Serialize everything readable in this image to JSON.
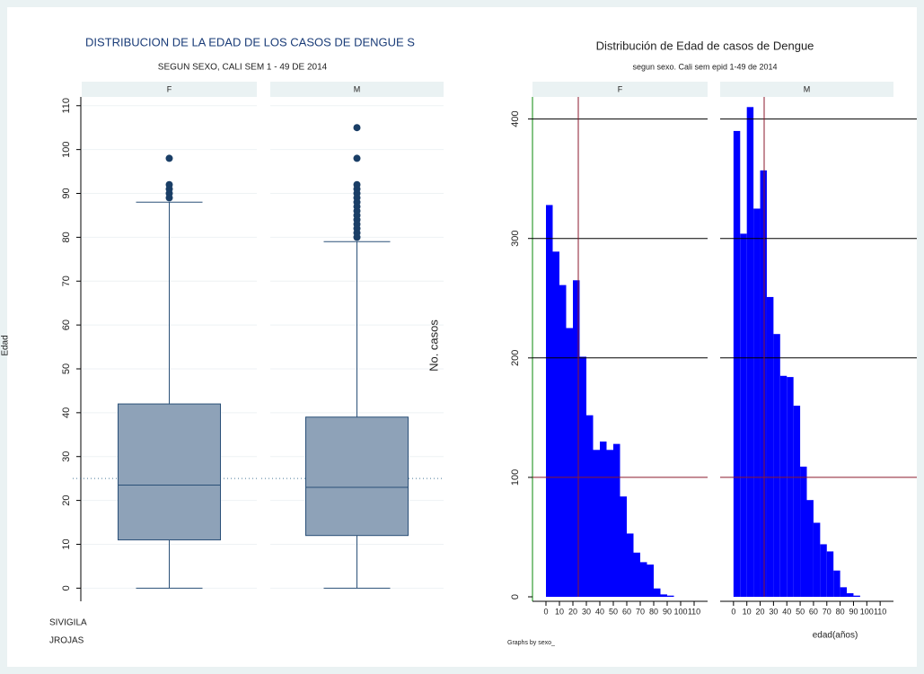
{
  "chart_data": [
    {
      "type": "box",
      "title": "DISTRIBUCION DE LA EDAD DE LOS CASOS DE DENGUE S",
      "subtitle": "SEGUN SEXO, CALI SEM 1 - 49 DE 2014",
      "y_label": "Edad",
      "ylim": [
        -3,
        112
      ],
      "yticks": [
        0,
        10,
        20,
        30,
        40,
        50,
        60,
        70,
        80,
        90,
        100,
        110
      ],
      "ref_line": 25,
      "color": "#8ea2b8",
      "line_color": "#2a5078",
      "panels": [
        {
          "name": "F",
          "q1": 11,
          "median": 23.5,
          "q3": 42,
          "whisker_low": 0,
          "whisker_high": 88,
          "outliers": [
            89,
            90,
            91,
            92,
            98
          ]
        },
        {
          "name": "M",
          "q1": 12,
          "median": 23,
          "q3": 39,
          "whisker_low": 0,
          "whisker_high": 79,
          "outliers": [
            80,
            81,
            82,
            83,
            84,
            85,
            86,
            87,
            88,
            89,
            90,
            91,
            92,
            98,
            105
          ]
        }
      ],
      "notes": [
        "SIVIGILA",
        "JROJAS"
      ]
    },
    {
      "type": "histogram",
      "title": "Distribución de Edad de casos de Dengue",
      "subtitle": "segun sexo. Cali sem epid 1-49 de 2014",
      "y_label": "No. casos",
      "x_label": "edad(años)",
      "note": "Graphs by sexo_",
      "bins": [
        0,
        5,
        10,
        15,
        20,
        25,
        30,
        35,
        40,
        45,
        50,
        55,
        60,
        65,
        70,
        75,
        80,
        85,
        90,
        95
      ],
      "xlim": [
        -10,
        120
      ],
      "xticks": [
        0,
        10,
        20,
        30,
        40,
        50,
        60,
        70,
        80,
        90,
        100,
        110
      ],
      "ylim": [
        0,
        420
      ],
      "yticks": [
        0,
        100,
        200,
        300,
        400
      ],
      "hlines": [
        {
          "value": 100,
          "color": "#8b1a2e"
        },
        {
          "value": 200,
          "color": "#000000"
        },
        {
          "value": 300,
          "color": "#000000"
        },
        {
          "value": 400,
          "color": "#000000"
        }
      ],
      "series": [
        {
          "name": "F",
          "color": "#0000ff",
          "mean": 24,
          "values": [
            328,
            289,
            261,
            225,
            265,
            201,
            152,
            123,
            130,
            123,
            128,
            84,
            53,
            37,
            29,
            27,
            7,
            2,
            1
          ]
        },
        {
          "name": "M",
          "color": "#0000ff",
          "mean": 23,
          "values": [
            390,
            304,
            410,
            325,
            357,
            251,
            220,
            185,
            184,
            160,
            109,
            81,
            62,
            44,
            38,
            22,
            8,
            3,
            1
          ]
        }
      ]
    }
  ]
}
